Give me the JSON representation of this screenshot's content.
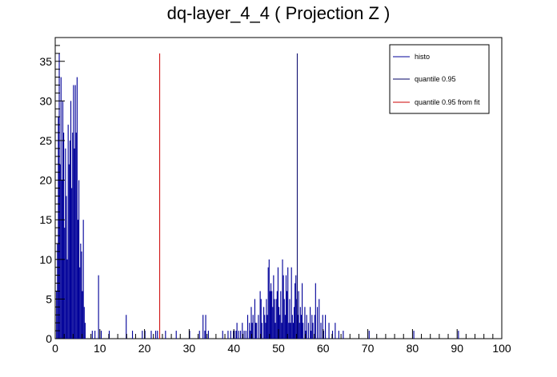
{
  "chart_data": {
    "type": "bar",
    "title": "dq-layer_4_4 ( Projection Z )",
    "xlabel": "",
    "ylabel": "",
    "xlim": [
      0,
      100
    ],
    "ylim": [
      0,
      38
    ],
    "x_ticks": [
      "0",
      "10",
      "20",
      "30",
      "40",
      "50",
      "60",
      "70",
      "80",
      "90",
      "100"
    ],
    "y_ticks": [
      "0",
      "5",
      "10",
      "15",
      "20",
      "25",
      "30",
      "35"
    ],
    "bin_width": 0.2,
    "series": [
      {
        "name": "histo",
        "color": "#000099",
        "points": [
          [
            0.2,
            6
          ],
          [
            0.4,
            12
          ],
          [
            0.6,
            28
          ],
          [
            0.8,
            36
          ],
          [
            1.0,
            22
          ],
          [
            1.2,
            33
          ],
          [
            1.4,
            20
          ],
          [
            1.6,
            30
          ],
          [
            1.8,
            26
          ],
          [
            2.0,
            14
          ],
          [
            2.2,
            24
          ],
          [
            2.4,
            18
          ],
          [
            2.6,
            10
          ],
          [
            2.8,
            27
          ],
          [
            3.0,
            22
          ],
          [
            3.2,
            25
          ],
          [
            3.4,
            30
          ],
          [
            3.6,
            19
          ],
          [
            3.8,
            26
          ],
          [
            4.0,
            32
          ],
          [
            4.2,
            24
          ],
          [
            4.4,
            32
          ],
          [
            4.6,
            26
          ],
          [
            4.8,
            33
          ],
          [
            5.0,
            15
          ],
          [
            5.2,
            20
          ],
          [
            5.4,
            9
          ],
          [
            5.6,
            12
          ],
          [
            5.8,
            11
          ],
          [
            6.0,
            6
          ],
          [
            6.2,
            15
          ],
          [
            6.4,
            4
          ],
          [
            6.6,
            2
          ],
          [
            8.2,
            1
          ],
          [
            8.8,
            1
          ],
          [
            9.6,
            8
          ],
          [
            10.2,
            1
          ],
          [
            12.0,
            1
          ],
          [
            15.8,
            3
          ],
          [
            17.2,
            1
          ],
          [
            19.4,
            1
          ],
          [
            20.0,
            1
          ],
          [
            21.4,
            1
          ],
          [
            22.4,
            1
          ],
          [
            22.8,
            1
          ],
          [
            24.6,
            1
          ],
          [
            27.0,
            1
          ],
          [
            30.0,
            1
          ],
          [
            32.2,
            1
          ],
          [
            33.0,
            3
          ],
          [
            33.4,
            1
          ],
          [
            33.6,
            3
          ],
          [
            34.2,
            1
          ],
          [
            37.4,
            1
          ],
          [
            38.6,
            1
          ],
          [
            39.2,
            1
          ],
          [
            39.8,
            1
          ],
          [
            40.0,
            1
          ],
          [
            40.4,
            1
          ],
          [
            40.6,
            2
          ],
          [
            41.0,
            1
          ],
          [
            41.4,
            1
          ],
          [
            41.8,
            2
          ],
          [
            42.2,
            1
          ],
          [
            42.6,
            1
          ],
          [
            43.0,
            3
          ],
          [
            43.4,
            2
          ],
          [
            43.6,
            1
          ],
          [
            43.8,
            4
          ],
          [
            44.0,
            2
          ],
          [
            44.2,
            3
          ],
          [
            44.6,
            5
          ],
          [
            44.8,
            2
          ],
          [
            45.0,
            2
          ],
          [
            45.4,
            3
          ],
          [
            45.8,
            6
          ],
          [
            46.0,
            5
          ],
          [
            46.2,
            2
          ],
          [
            46.6,
            4
          ],
          [
            46.8,
            3
          ],
          [
            47.0,
            2
          ],
          [
            47.2,
            5
          ],
          [
            47.4,
            3
          ],
          [
            47.6,
            9
          ],
          [
            47.8,
            10
          ],
          [
            48.0,
            6
          ],
          [
            48.2,
            7
          ],
          [
            48.4,
            6
          ],
          [
            48.6,
            4
          ],
          [
            48.8,
            8
          ],
          [
            49.0,
            5
          ],
          [
            49.2,
            2
          ],
          [
            49.4,
            5
          ],
          [
            49.6,
            6
          ],
          [
            49.8,
            9
          ],
          [
            50.0,
            4
          ],
          [
            50.2,
            3
          ],
          [
            50.4,
            6
          ],
          [
            50.6,
            2
          ],
          [
            50.8,
            10
          ],
          [
            51.0,
            8
          ],
          [
            51.2,
            5
          ],
          [
            51.4,
            3
          ],
          [
            51.6,
            8
          ],
          [
            51.8,
            6
          ],
          [
            52.0,
            9
          ],
          [
            52.2,
            2
          ],
          [
            52.4,
            5
          ],
          [
            52.6,
            2
          ],
          [
            52.8,
            9
          ],
          [
            53.0,
            3
          ],
          [
            53.2,
            2
          ],
          [
            53.4,
            4
          ],
          [
            53.6,
            7
          ],
          [
            53.8,
            8
          ],
          [
            54.0,
            5
          ],
          [
            54.2,
            3
          ],
          [
            54.4,
            6
          ],
          [
            54.6,
            2
          ],
          [
            54.8,
            4
          ],
          [
            55.0,
            3
          ],
          [
            55.2,
            7
          ],
          [
            55.4,
            2
          ],
          [
            55.8,
            4
          ],
          [
            56.0,
            1
          ],
          [
            56.2,
            3
          ],
          [
            56.6,
            2
          ],
          [
            57.0,
            4
          ],
          [
            57.2,
            1
          ],
          [
            57.4,
            3
          ],
          [
            57.6,
            2
          ],
          [
            58.0,
            3
          ],
          [
            58.2,
            7
          ],
          [
            58.6,
            4
          ],
          [
            59.0,
            5
          ],
          [
            59.4,
            2
          ],
          [
            59.8,
            3
          ],
          [
            60.0,
            1
          ],
          [
            60.4,
            3
          ],
          [
            61.2,
            2
          ],
          [
            62.0,
            1
          ],
          [
            62.6,
            2
          ],
          [
            63.4,
            1
          ],
          [
            64.4,
            1
          ],
          [
            70.2,
            1
          ],
          [
            80.2,
            1
          ],
          [
            90.2,
            1
          ]
        ]
      },
      {
        "name": "quantile 0.95",
        "color": "#000066",
        "x": 54.2,
        "y_top": 36
      },
      {
        "name": "quantile 0.95 from fit",
        "color": "#cc0000",
        "x": 23.4,
        "y_top": 36
      }
    ],
    "legend_position": "top-right"
  }
}
